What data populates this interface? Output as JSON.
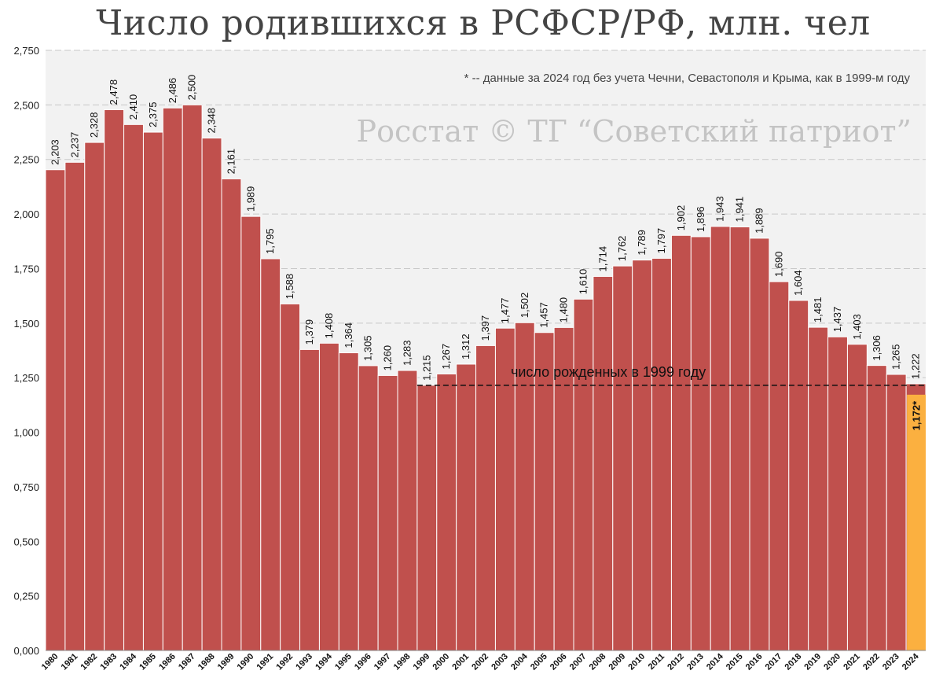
{
  "title": "Число родившихся в РСФСР/РФ, млн. чел",
  "note": "* -- данные за 2024 год без учета Чечни, Севастополя и Крыма, как в 1999-м году",
  "watermark": "Росстат © ТГ “Советский патриот”",
  "colors": {
    "bar": "#c0504d",
    "highlight": "#fbb040",
    "plot_bg": "#f2f2f2",
    "grid": "#c8c8c8"
  },
  "chart_data": {
    "type": "bar",
    "title": "Число родившихся в РСФСР/РФ, млн. чел",
    "ylim": [
      0,
      2.75
    ],
    "yticks": [
      0,
      0.25,
      0.5,
      0.75,
      1.0,
      1.25,
      1.5,
      1.75,
      2.0,
      2.25,
      2.5,
      2.75
    ],
    "ytick_labels": [
      "0,000",
      "0,250",
      "0,500",
      "0,750",
      "1,000",
      "1,250",
      "1,500",
      "1,750",
      "2,000",
      "2,250",
      "2,500",
      "2,750"
    ],
    "grid": true,
    "categories": [
      "1980",
      "1981",
      "1982",
      "1983",
      "1984",
      "1985",
      "1986",
      "1987",
      "1988",
      "1989",
      "1990",
      "1991",
      "1992",
      "1993",
      "1994",
      "1995",
      "1996",
      "1997",
      "1998",
      "1999",
      "2000",
      "2001",
      "2002",
      "2003",
      "2004",
      "2005",
      "2006",
      "2007",
      "2008",
      "2009",
      "2010",
      "2011",
      "2012",
      "2013",
      "2014",
      "2015",
      "2016",
      "2017",
      "2018",
      "2019",
      "2020",
      "2021",
      "2022",
      "2023",
      "2024"
    ],
    "values": [
      2.203,
      2.237,
      2.328,
      2.478,
      2.41,
      2.375,
      2.486,
      2.5,
      2.348,
      2.161,
      1.989,
      1.795,
      1.588,
      1.379,
      1.408,
      1.364,
      1.305,
      1.26,
      1.283,
      1.215,
      1.267,
      1.312,
      1.397,
      1.477,
      1.502,
      1.457,
      1.48,
      1.61,
      1.714,
      1.762,
      1.789,
      1.797,
      1.902,
      1.896,
      1.943,
      1.941,
      1.889,
      1.69,
      1.604,
      1.481,
      1.437,
      1.403,
      1.306,
      1.265,
      1.222
    ],
    "value_labels": [
      "2,203",
      "2,237",
      "2,328",
      "2,478",
      "2,410",
      "2,375",
      "2,486",
      "2,500",
      "2,348",
      "2,161",
      "1,989",
      "1,795",
      "1,588",
      "1,379",
      "1,408",
      "1,364",
      "1,305",
      "1,260",
      "1,283",
      "1,215",
      "1,267",
      "1,312",
      "1,397",
      "1,477",
      "1,502",
      "1,457",
      "1,480",
      "1,610",
      "1,714",
      "1,762",
      "1,789",
      "1,797",
      "1,902",
      "1,896",
      "1,943",
      "1,941",
      "1,889",
      "1,690",
      "1,604",
      "1,481",
      "1,437",
      "1,403",
      "1,306",
      "1,265",
      "1,222"
    ],
    "highlight": {
      "category": "2024",
      "value": 1.172,
      "label": "1,172*"
    },
    "reference_line": {
      "value": 1.215,
      "from": "1999",
      "to": "2024",
      "label": "число рожденных в 1999 году"
    }
  }
}
